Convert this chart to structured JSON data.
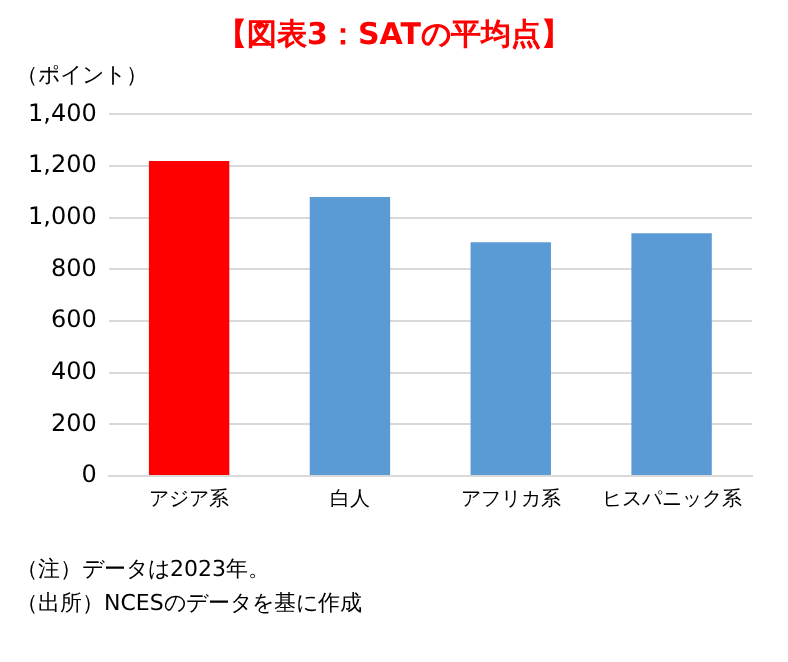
{
  "chart_data": {
    "type": "bar",
    "title": "【図表3：SATの平均点】",
    "ylabel": "（ポイント）",
    "categories": [
      "アジア系",
      "白人",
      "アフリカ系",
      "ヒスパニック系"
    ],
    "values": [
      1220,
      1080,
      905,
      940
    ],
    "colors": [
      "#ff0000",
      "#5b9bd5",
      "#5b9bd5",
      "#5b9bd5"
    ],
    "ylim": [
      0,
      1400
    ],
    "yticks": [
      0,
      {
        "value": 200,
        "label": "200"
      },
      {
        "value": 400,
        "label": "400"
      },
      {
        "value": 600,
        "label": "600"
      },
      {
        "value": 800,
        "label": "800"
      },
      {
        "value": 1000,
        "label": "1,000"
      },
      {
        "value": 1200,
        "label": "1,200"
      },
      {
        "value": 1400,
        "label": "1,400"
      }
    ],
    "grid": "y",
    "annotations": [
      "（注）データは2023年。",
      "（出所）NCESのデータを基に作成"
    ]
  }
}
